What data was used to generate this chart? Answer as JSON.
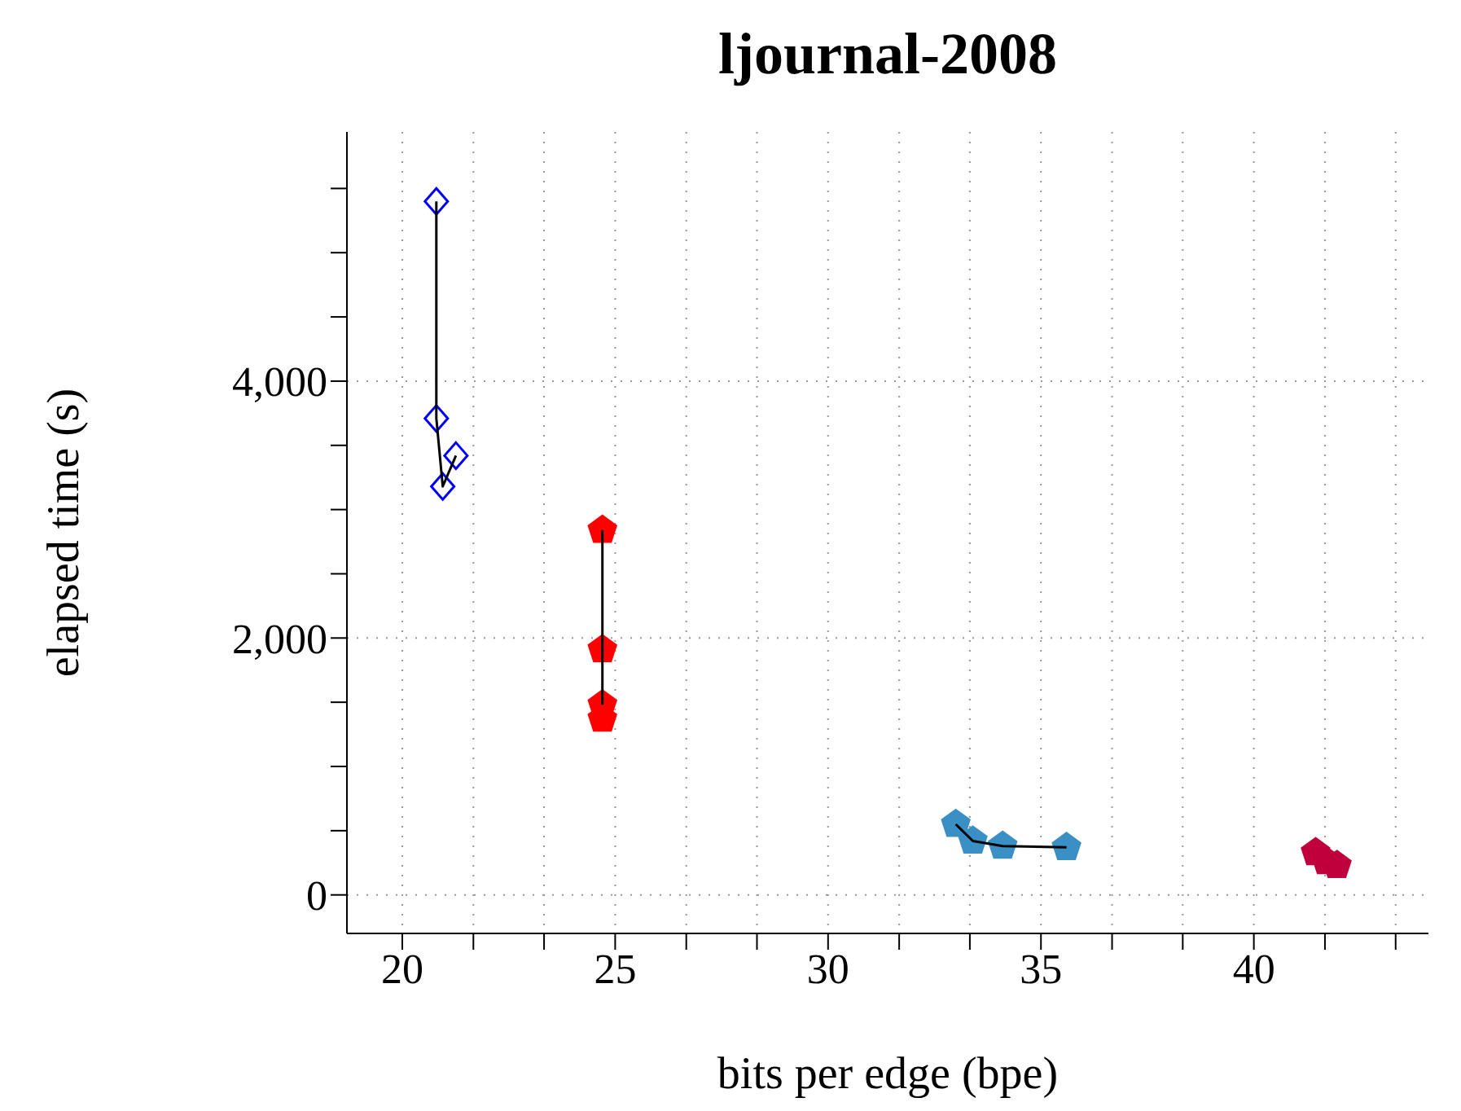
{
  "chart_data": {
    "type": "scatter",
    "title": "ljournal-2008",
    "xlabel": "bits per edge (bpe)",
    "ylabel": "elapsed time (s)",
    "xlim": [
      18.7,
      44.1
    ],
    "ylim": [
      -300,
      5940
    ],
    "xticks": [
      20,
      {
        "value": 21.67,
        "label": null
      },
      {
        "value": 23.33,
        "label": null
      },
      25,
      {
        "value": 26.67,
        "label": null
      },
      {
        "value": 28.33,
        "label": null
      },
      30,
      {
        "value": 31.67,
        "label": null
      },
      {
        "value": 33.33,
        "label": null
      },
      35,
      {
        "value": 36.67,
        "label": null
      },
      {
        "value": 38.33,
        "label": null
      },
      40,
      {
        "value": 41.67,
        "label": null
      },
      {
        "value": 43.33,
        "label": null
      }
    ],
    "yticks": [
      {
        "value": 0,
        "label": "0"
      },
      {
        "value": 500,
        "label": null
      },
      {
        "value": 1000,
        "label": null
      },
      {
        "value": 1500,
        "label": null
      },
      {
        "value": 2000,
        "label": "2,000"
      },
      {
        "value": 2500,
        "label": null
      },
      {
        "value": 3000,
        "label": null
      },
      {
        "value": 3500,
        "label": null
      },
      {
        "value": 4000,
        "label": "4,000"
      },
      {
        "value": 4500,
        "label": null
      },
      {
        "value": 5000,
        "label": null
      },
      {
        "value": 5500,
        "label": null
      }
    ],
    "grid": true,
    "series": [
      {
        "color": "#0000ff",
        "marker": "diamond",
        "x": [
          20.8,
          20.8,
          20.95,
          21.26
        ],
        "values": [
          5400,
          3710,
          3180,
          3420
        ]
      },
      {
        "color": "#ff0000",
        "x": [
          24.7,
          24.7,
          24.7,
          24.7
        ],
        "values": [
          2840,
          1910,
          1480,
          1370
        ]
      },
      {
        "color": "#3a8fc4",
        "x": [
          33.0,
          33.4,
          34.1,
          35.6
        ],
        "values": [
          550,
          420,
          380,
          370
        ]
      },
      {
        "color": "#c0003c",
        "x": [
          41.45,
          41.7,
          41.95
        ],
        "values": [
          330,
          260,
          230
        ]
      },
      {
        "type": "line",
        "color": "#000000",
        "marker": "none",
        "x": [
          20.8,
          20.8,
          20.95,
          21.26
        ],
        "values": [
          5400,
          3710,
          3180,
          3420
        ]
      },
      {
        "type": "line",
        "color": "#000000",
        "marker": "none",
        "x": [
          24.7,
          24.7,
          24.7
        ],
        "values": [
          2840,
          1910,
          1480
        ]
      },
      {
        "type": "line",
        "color": "#000000",
        "marker": "none",
        "x": [
          33.0,
          33.4,
          34.1,
          35.6
        ],
        "values": [
          550,
          420,
          380,
          370
        ]
      }
    ]
  }
}
